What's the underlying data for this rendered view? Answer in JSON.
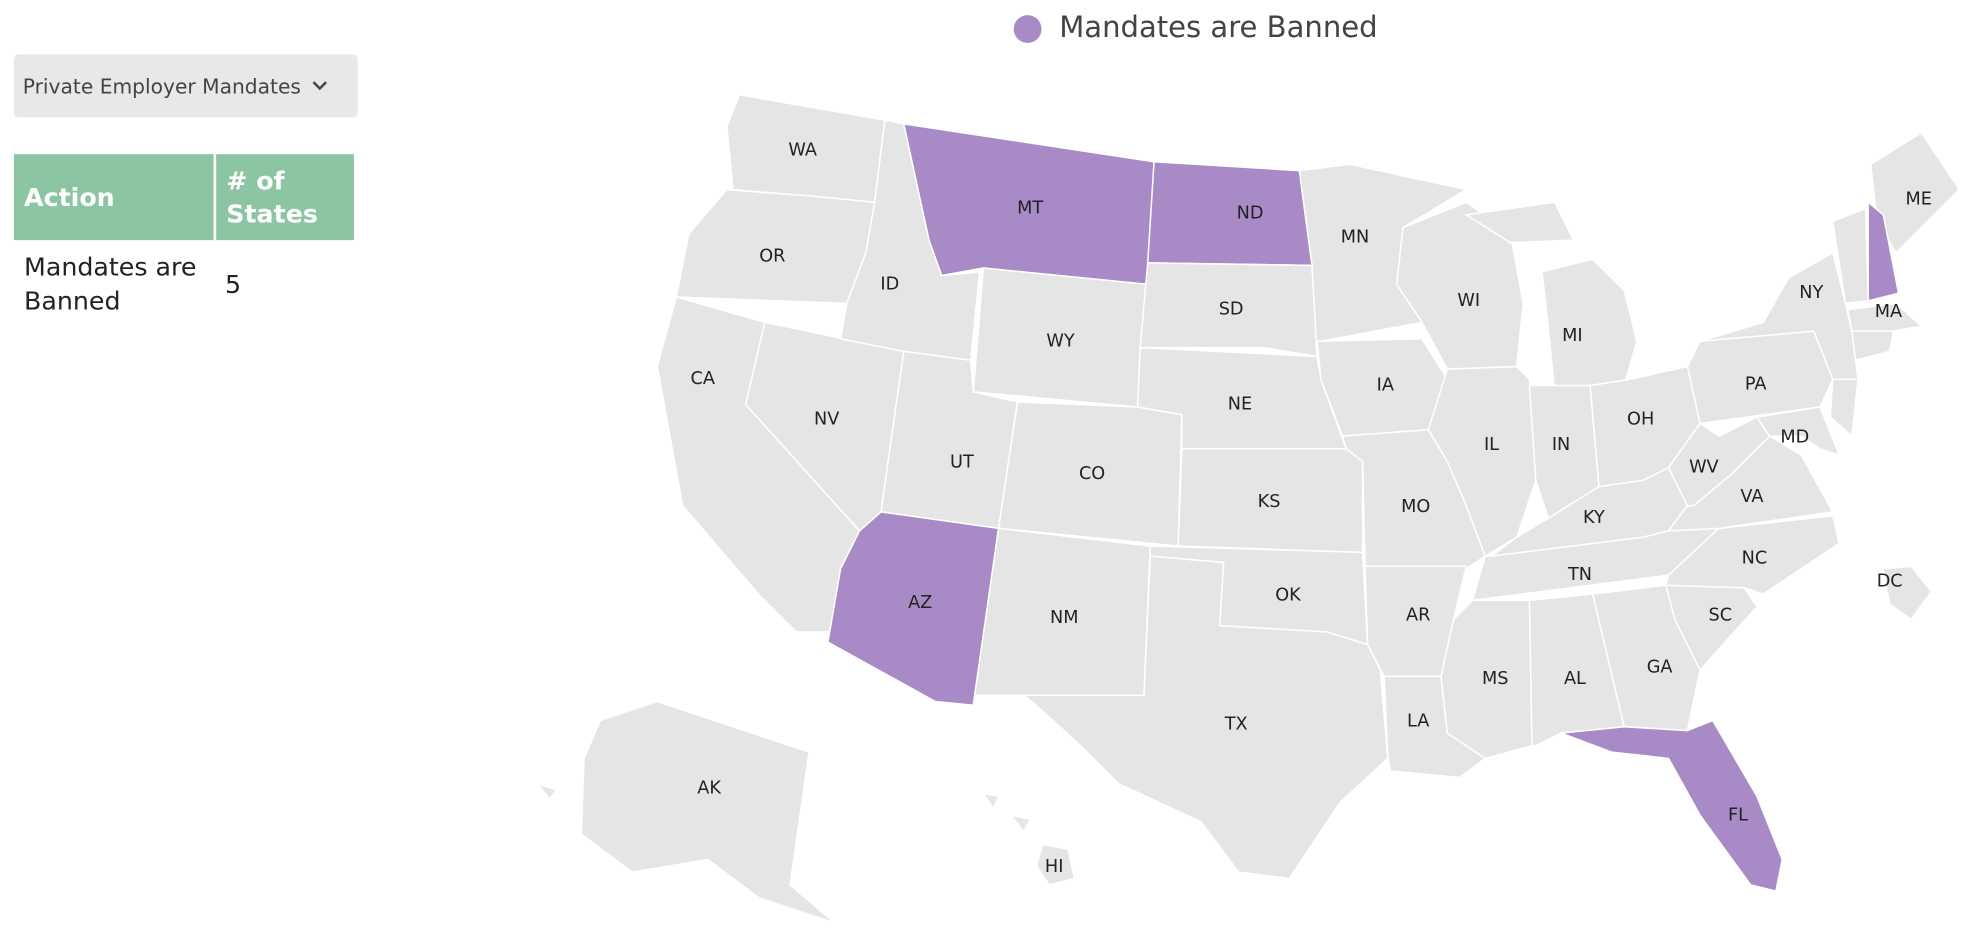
{
  "dropdown": {
    "label": "Private Employer Mandates"
  },
  "table": {
    "headers": [
      "Action",
      "# of States"
    ],
    "rows": [
      [
        "Mandates are Banned",
        5
      ]
    ]
  },
  "map": {
    "legend": "Mandates are Banned",
    "banned_color": "#a88bc6",
    "default_color": "#e5e5e5",
    "states": [
      {
        "label": "WA",
        "banned": false
      },
      {
        "label": "OR",
        "banned": false
      },
      {
        "label": "CA",
        "banned": false
      },
      {
        "label": "NV",
        "banned": false
      },
      {
        "label": "ID",
        "banned": false
      },
      {
        "label": "MT",
        "banned": true
      },
      {
        "label": "WY",
        "banned": false
      },
      {
        "label": "UT",
        "banned": false
      },
      {
        "label": "AZ",
        "banned": true
      },
      {
        "label": "CO",
        "banned": false
      },
      {
        "label": "NM",
        "banned": false
      },
      {
        "label": "ND",
        "banned": true
      },
      {
        "label": "SD",
        "banned": false
      },
      {
        "label": "NE",
        "banned": false
      },
      {
        "label": "KS",
        "banned": false
      },
      {
        "label": "OK",
        "banned": false
      },
      {
        "label": "TX",
        "banned": false
      },
      {
        "label": "MN",
        "banned": false
      },
      {
        "label": "IA",
        "banned": false
      },
      {
        "label": "MO",
        "banned": false
      },
      {
        "label": "AR",
        "banned": false
      },
      {
        "label": "LA",
        "banned": false
      },
      {
        "label": "WI",
        "banned": false
      },
      {
        "label": "IL",
        "banned": false
      },
      {
        "label": "MI",
        "banned": false
      },
      {
        "label": "IN",
        "banned": false
      },
      {
        "label": "OH",
        "banned": false
      },
      {
        "label": "KY",
        "banned": false
      },
      {
        "label": "TN",
        "banned": false
      },
      {
        "label": "MS",
        "banned": false
      },
      {
        "label": "AL",
        "banned": false
      },
      {
        "label": "GA",
        "banned": false
      },
      {
        "label": "FL",
        "banned": true
      },
      {
        "label": "SC",
        "banned": false
      },
      {
        "label": "NC",
        "banned": false
      },
      {
        "label": "VA",
        "banned": false
      },
      {
        "label": "WV",
        "banned": false
      },
      {
        "label": "PA",
        "banned": false
      },
      {
        "label": "MD",
        "banned": false
      },
      {
        "label": "NY",
        "banned": false
      },
      {
        "label": "MA",
        "banned": false
      },
      {
        "label": "ME",
        "banned": false
      },
      {
        "label": null,
        "banned": true
      },
      {
        "label": null,
        "banned": false
      },
      {
        "label": null,
        "banned": false
      },
      {
        "label": null,
        "banned": false
      },
      {
        "label": "DC",
        "banned": false
      },
      {
        "label": "AK",
        "banned": false
      },
      {
        "label": "HI",
        "banned": false
      }
    ]
  }
}
